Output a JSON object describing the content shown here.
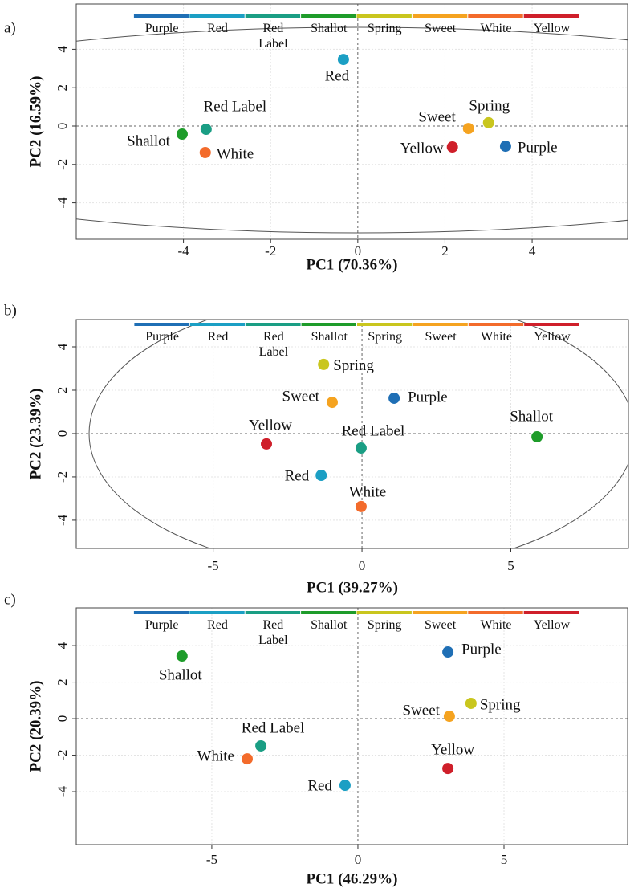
{
  "chart_data": [
    {
      "type": "scatter",
      "panel_label": "a)",
      "xlabel": "PC1 (70.36%)",
      "ylabel": "PC2 (16.59%)",
      "xlim": [
        -6.46,
        6.19
      ],
      "ylim": [
        -5.9,
        6.36
      ],
      "xticks": [
        -4,
        -2,
        0,
        2,
        4
      ],
      "yticks": [
        -4,
        -2,
        0,
        2,
        4
      ],
      "grid": true,
      "series": [
        {
          "name": "Purple",
          "color": "#1f6fb5",
          "x": [
            3.39
          ],
          "y": [
            -1.05
          ]
        },
        {
          "name": "Red",
          "color": "#1b9fc4",
          "x": [
            -0.33
          ],
          "y": [
            3.47
          ]
        },
        {
          "name": "Red Label",
          "color": "#1a9e84",
          "x": [
            -3.48
          ],
          "y": [
            -0.17
          ]
        },
        {
          "name": "Shallot",
          "color": "#1e9c2a",
          "x": [
            -4.03
          ],
          "y": [
            -0.42
          ]
        },
        {
          "name": "Spring",
          "color": "#c9c61e",
          "x": [
            3.0
          ],
          "y": [
            0.17
          ]
        },
        {
          "name": "Sweet",
          "color": "#f5a320",
          "x": [
            2.54
          ],
          "y": [
            -0.13
          ]
        },
        {
          "name": "White",
          "color": "#f36b2b",
          "x": [
            -3.5
          ],
          "y": [
            -1.38
          ]
        },
        {
          "name": "Yellow",
          "color": "#cf1f2a",
          "x": [
            2.17
          ],
          "y": [
            -1.09
          ]
        }
      ]
    },
    {
      "type": "scatter",
      "panel_label": "b)",
      "xlabel": "PC1 (39.27%)",
      "ylabel": "PC2 (23.39%)",
      "xlim": [
        -9.6,
        8.95
      ],
      "ylim": [
        -5.3,
        5.26
      ],
      "xticks": [
        -5,
        0,
        5
      ],
      "yticks": [
        -4,
        -2,
        0,
        2,
        4
      ],
      "grid": true,
      "series": [
        {
          "name": "Purple",
          "color": "#1f6fb5",
          "x": [
            1.08
          ],
          "y": [
            1.63
          ]
        },
        {
          "name": "Red",
          "color": "#1b9fc4",
          "x": [
            -1.37
          ],
          "y": [
            -1.93
          ]
        },
        {
          "name": "Red Label",
          "color": "#1a9e84",
          "x": [
            -0.03
          ],
          "y": [
            -0.67
          ]
        },
        {
          "name": "Shallot",
          "color": "#1e9c2a",
          "x": [
            5.88
          ],
          "y": [
            -0.15
          ]
        },
        {
          "name": "Spring",
          "color": "#c9c61e",
          "x": [
            -1.29
          ],
          "y": [
            3.19
          ]
        },
        {
          "name": "Sweet",
          "color": "#f5a320",
          "x": [
            -1.0
          ],
          "y": [
            1.44
          ]
        },
        {
          "name": "White",
          "color": "#f36b2b",
          "x": [
            -0.03
          ],
          "y": [
            -3.37
          ]
        },
        {
          "name": "Yellow",
          "color": "#cf1f2a",
          "x": [
            -3.21
          ],
          "y": [
            -0.48
          ]
        }
      ]
    },
    {
      "type": "scatter",
      "panel_label": "c)",
      "xlabel": "PC1 (46.29%)",
      "ylabel": "PC2 (20.39%)",
      "xlim": [
        -9.64,
        9.23
      ],
      "ylim": [
        -6.9,
        6.07
      ],
      "xticks": [
        -5,
        0,
        5
      ],
      "yticks": [
        -4,
        -2,
        0,
        2,
        4
      ],
      "grid": true,
      "series": [
        {
          "name": "Purple",
          "color": "#1f6fb5",
          "x": [
            3.08
          ],
          "y": [
            3.65
          ]
        },
        {
          "name": "Red",
          "color": "#1b9fc4",
          "x": [
            -0.44
          ],
          "y": [
            -3.65
          ]
        },
        {
          "name": "Red Label",
          "color": "#1a9e84",
          "x": [
            -3.32
          ],
          "y": [
            -1.49
          ]
        },
        {
          "name": "Shallot",
          "color": "#1e9c2a",
          "x": [
            -6.02
          ],
          "y": [
            3.43
          ]
        },
        {
          "name": "Spring",
          "color": "#c9c61e",
          "x": [
            3.87
          ],
          "y": [
            0.84
          ]
        },
        {
          "name": "Sweet",
          "color": "#f5a320",
          "x": [
            3.13
          ],
          "y": [
            0.13
          ]
        },
        {
          "name": "White",
          "color": "#f36b2b",
          "x": [
            -3.79
          ],
          "y": [
            -2.2
          ]
        },
        {
          "name": "Yellow",
          "color": "#cf1f2a",
          "x": [
            3.08
          ],
          "y": [
            -2.73
          ]
        }
      ]
    }
  ]
}
